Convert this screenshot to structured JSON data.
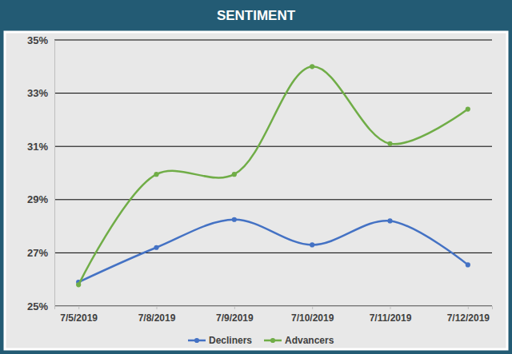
{
  "chart_data": {
    "type": "line",
    "title": "SENTIMENT",
    "categories": [
      "7/5/2019",
      "7/8/2019",
      "7/9/2019",
      "7/10/2019",
      "7/11/2019",
      "7/12/2019"
    ],
    "series": [
      {
        "name": "Decliners",
        "color": "#4472c4",
        "marker": "circle",
        "values": [
          25.9,
          27.2,
          28.25,
          27.3,
          28.2,
          26.55
        ]
      },
      {
        "name": "Advancers",
        "color": "#70ad47",
        "marker": "circle",
        "values": [
          25.8,
          29.95,
          29.95,
          34.0,
          31.1,
          32.4
        ]
      }
    ],
    "ylim": [
      25,
      35
    ],
    "yticks": [
      {
        "value": 25,
        "label": "25%"
      },
      {
        "value": 27,
        "label": "27%"
      },
      {
        "value": 29,
        "label": "29%"
      },
      {
        "value": 31,
        "label": "31%"
      },
      {
        "value": 33,
        "label": "33%"
      },
      {
        "value": 35,
        "label": "35%"
      }
    ],
    "grid": true,
    "legend": "bottom"
  }
}
